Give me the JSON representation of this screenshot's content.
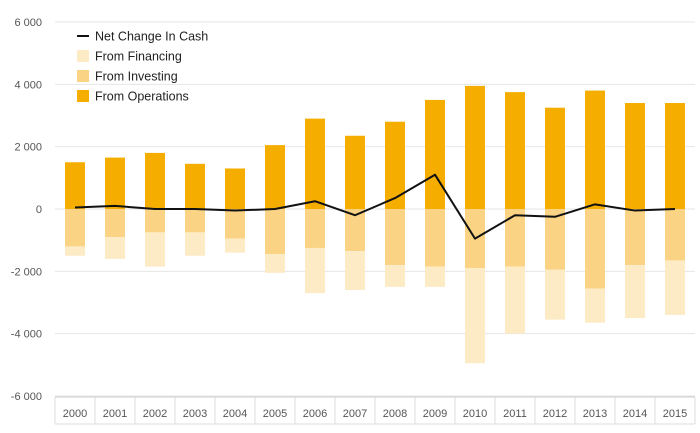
{
  "chart_data": {
    "type": "bar",
    "stacked": true,
    "categories": [
      "2000",
      "2001",
      "2002",
      "2003",
      "2004",
      "2005",
      "2006",
      "2007",
      "2008",
      "2009",
      "2010",
      "2011",
      "2012",
      "2013",
      "2014",
      "2015"
    ],
    "series": [
      {
        "name": "From Operations",
        "kind": "bar",
        "color": "#F5AE00",
        "values": [
          1500,
          1650,
          1800,
          1450,
          1300,
          2050,
          2900,
          2350,
          2800,
          3500,
          3950,
          3750,
          3250,
          3800,
          3400,
          3400
        ]
      },
      {
        "name": "From Investing",
        "kind": "bar",
        "color": "#FAD384",
        "values": [
          -1200,
          -900,
          -750,
          -750,
          -950,
          -1450,
          -1250,
          -1350,
          -1800,
          -1850,
          -1900,
          -1850,
          -1950,
          -2550,
          -1800,
          -1650
        ]
      },
      {
        "name": "From Financing",
        "kind": "bar",
        "color": "#FDEBC6",
        "values": [
          -300,
          -700,
          -1100,
          -750,
          -450,
          -600,
          -1450,
          -1250,
          -700,
          -650,
          -3050,
          -2150,
          -1600,
          -1100,
          -1700,
          -1750
        ]
      },
      {
        "name": "Net Change In Cash",
        "kind": "line",
        "color": "#111111",
        "values": [
          50,
          100,
          0,
          0,
          -50,
          0,
          250,
          -200,
          350,
          1100,
          -950,
          -200,
          -250,
          150,
          -50,
          0
        ]
      }
    ],
    "ylim": [
      -6000,
      6000
    ],
    "yticks": [
      -6000,
      -4000,
      -2000,
      0,
      2000,
      4000,
      6000
    ],
    "ytick_labels": [
      "-6 000",
      "-4 000",
      "-2 000",
      "0",
      "2 000",
      "4 000",
      "6 000"
    ],
    "grid": true,
    "legend_position": "top-left",
    "legend_order": [
      "Net Change In Cash",
      "From Financing",
      "From Investing",
      "From Operations"
    ],
    "title": "",
    "xlabel": "",
    "ylabel": ""
  }
}
